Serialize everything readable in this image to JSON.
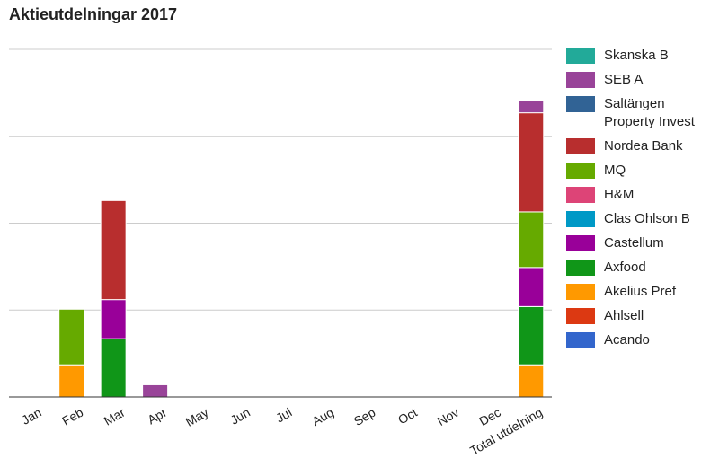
{
  "chart_data": {
    "type": "bar",
    "stacked": true,
    "title": "Aktieutdelningar 2017",
    "xlabel": "",
    "ylabel": "",
    "ylim": [
      0,
      4
    ],
    "y_tick_labels_shown": false,
    "grid": true,
    "legend": "right",
    "categories": [
      "Jan",
      "Feb",
      "Mar",
      "Apr",
      "May",
      "Jun",
      "Jul",
      "Aug",
      "Sep",
      "Oct",
      "Nov",
      "Dec",
      "Total utdelning"
    ],
    "series": [
      {
        "name": "Acando",
        "color": "#3366cc",
        "values": [
          0,
          0,
          0,
          0,
          0,
          0,
          0,
          0,
          0,
          0,
          0,
          0,
          0
        ]
      },
      {
        "name": "Ahlsell",
        "color": "#dc3912",
        "values": [
          0,
          0,
          0,
          0,
          0,
          0,
          0,
          0,
          0,
          0,
          0,
          0,
          0
        ]
      },
      {
        "name": "Akelius Pref",
        "color": "#ff9900",
        "values": [
          0,
          0.37,
          0,
          0,
          0,
          0,
          0,
          0,
          0,
          0,
          0,
          0,
          0.37
        ]
      },
      {
        "name": "Axfood",
        "color": "#109618",
        "values": [
          0,
          0,
          0.67,
          0,
          0,
          0,
          0,
          0,
          0,
          0,
          0,
          0,
          0.67
        ]
      },
      {
        "name": "Castellum",
        "color": "#990099",
        "values": [
          0,
          0,
          0.45,
          0,
          0,
          0,
          0,
          0,
          0,
          0,
          0,
          0,
          0.45
        ]
      },
      {
        "name": "Clas Ohlson B",
        "color": "#0099c6",
        "values": [
          0,
          0,
          0,
          0,
          0,
          0,
          0,
          0,
          0,
          0,
          0,
          0,
          0
        ]
      },
      {
        "name": "H&M",
        "color": "#dd4477",
        "values": [
          0,
          0,
          0,
          0,
          0,
          0,
          0,
          0,
          0,
          0,
          0,
          0,
          0
        ]
      },
      {
        "name": "MQ",
        "color": "#66aa00",
        "values": [
          0,
          0.64,
          0,
          0,
          0,
          0,
          0,
          0,
          0,
          0,
          0,
          0,
          0.64
        ]
      },
      {
        "name": "Nordea Bank",
        "color": "#b82e2e",
        "values": [
          0,
          0,
          1.14,
          0,
          0,
          0,
          0,
          0,
          0,
          0,
          0,
          0,
          1.14
        ]
      },
      {
        "name": "Saltängen Property Invest",
        "color": "#316395",
        "values": [
          0,
          0,
          0,
          0,
          0,
          0,
          0,
          0,
          0,
          0,
          0,
          0,
          0
        ]
      },
      {
        "name": "SEB A",
        "color": "#994499",
        "values": [
          0,
          0,
          0,
          0.14,
          0,
          0,
          0,
          0,
          0,
          0,
          0,
          0,
          0.14
        ]
      },
      {
        "name": "Skanska B",
        "color": "#22aa99",
        "values": [
          0,
          0,
          0,
          0,
          0,
          0,
          0,
          0,
          0,
          0,
          0,
          0,
          0
        ]
      }
    ],
    "legend_order": [
      "Skanska B",
      "SEB A",
      "Saltängen Property Invest",
      "Nordea Bank",
      "MQ",
      "H&M",
      "Clas Ohlson B",
      "Castellum",
      "Axfood",
      "Akelius Pref",
      "Ahlsell",
      "Acando"
    ]
  }
}
